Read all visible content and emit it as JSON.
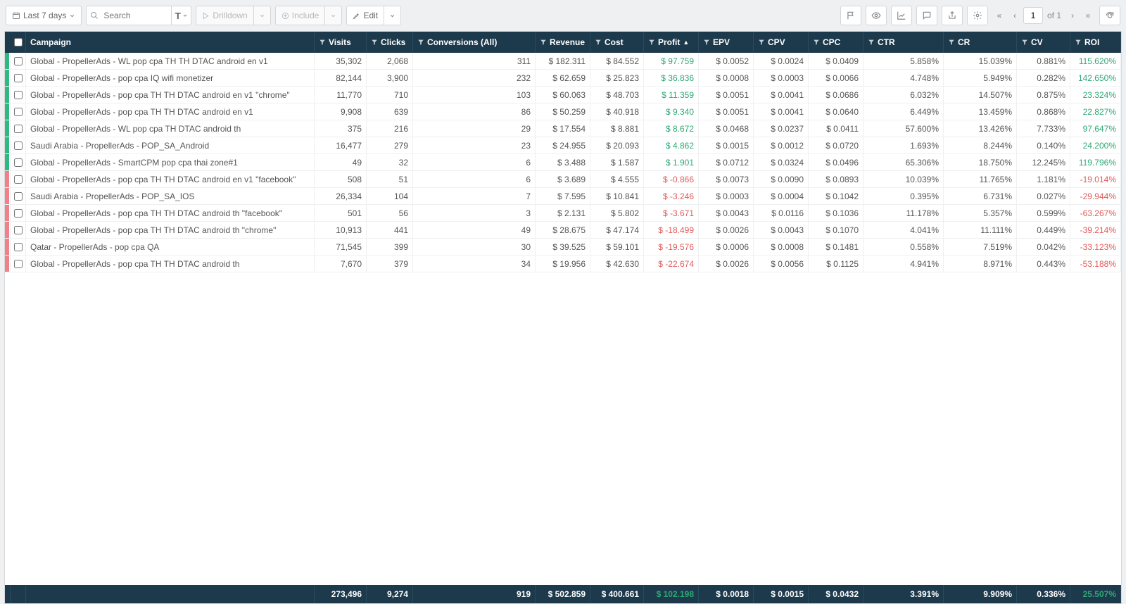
{
  "colors": {
    "header_bg": "#1d3a4c",
    "positive": "#2fa875",
    "negative": "#e05a5a",
    "status_green": "#2fb980",
    "status_red": "#f0808a",
    "border": "#d5d5d5"
  },
  "toolbar": {
    "date_range_label": "Last 7 days",
    "search_placeholder": "Search",
    "search_type_label": "T",
    "drilldown_label": "Drilldown",
    "include_label": "Include",
    "edit_label": "Edit",
    "page_current": "1",
    "page_total_label": "of 1"
  },
  "columns": [
    {
      "key": "campaign",
      "label": "Campaign",
      "align": "left",
      "filter": false
    },
    {
      "key": "visits",
      "label": "Visits",
      "align": "right",
      "filter": true
    },
    {
      "key": "clicks",
      "label": "Clicks",
      "align": "right",
      "filter": true
    },
    {
      "key": "conv",
      "label": "Conversions (All)",
      "align": "right",
      "filter": true
    },
    {
      "key": "revenue",
      "label": "Revenue",
      "align": "right",
      "filter": true
    },
    {
      "key": "cost",
      "label": "Cost",
      "align": "right",
      "filter": true
    },
    {
      "key": "profit",
      "label": "Profit",
      "align": "right",
      "filter": true,
      "sorted": "asc"
    },
    {
      "key": "epv",
      "label": "EPV",
      "align": "right",
      "filter": true
    },
    {
      "key": "cpv",
      "label": "CPV",
      "align": "right",
      "filter": true
    },
    {
      "key": "cpc",
      "label": "CPC",
      "align": "right",
      "filter": true
    },
    {
      "key": "ctr",
      "label": "CTR",
      "align": "right",
      "filter": true
    },
    {
      "key": "cr",
      "label": "CR",
      "align": "right",
      "filter": true
    },
    {
      "key": "cv",
      "label": "CV",
      "align": "right",
      "filter": true
    },
    {
      "key": "roi",
      "label": "ROI",
      "align": "right",
      "filter": true
    }
  ],
  "rows": [
    {
      "status": "pos",
      "campaign": "Global - PropellerAds - WL pop cpa TH TH DTAC android en v1",
      "visits": "35,302",
      "clicks": "2,068",
      "conv": "311",
      "revenue": "$ 182.311",
      "cost": "$ 84.552",
      "profit": "$ 97.759",
      "profit_sign": 1,
      "epv": "$ 0.0052",
      "cpv": "$ 0.0024",
      "cpc": "$ 0.0409",
      "ctr": "5.858%",
      "cr": "15.039%",
      "cv": "0.881%",
      "roi": "115.620%",
      "roi_sign": 1
    },
    {
      "status": "pos",
      "campaign": "Global - PropellerAds - pop cpa IQ wifi monetizer",
      "visits": "82,144",
      "clicks": "3,900",
      "conv": "232",
      "revenue": "$ 62.659",
      "cost": "$ 25.823",
      "profit": "$ 36.836",
      "profit_sign": 1,
      "epv": "$ 0.0008",
      "cpv": "$ 0.0003",
      "cpc": "$ 0.0066",
      "ctr": "4.748%",
      "cr": "5.949%",
      "cv": "0.282%",
      "roi": "142.650%",
      "roi_sign": 1
    },
    {
      "status": "pos",
      "campaign": "Global - PropellerAds - pop cpa TH TH DTAC android en v1 \"chrome\"",
      "visits": "11,770",
      "clicks": "710",
      "conv": "103",
      "revenue": "$ 60.063",
      "cost": "$ 48.703",
      "profit": "$ 11.359",
      "profit_sign": 1,
      "epv": "$ 0.0051",
      "cpv": "$ 0.0041",
      "cpc": "$ 0.0686",
      "ctr": "6.032%",
      "cr": "14.507%",
      "cv": "0.875%",
      "roi": "23.324%",
      "roi_sign": 1
    },
    {
      "status": "pos",
      "campaign": "Global - PropellerAds - pop cpa TH TH DTAC android en v1",
      "visits": "9,908",
      "clicks": "639",
      "conv": "86",
      "revenue": "$ 50.259",
      "cost": "$ 40.918",
      "profit": "$ 9.340",
      "profit_sign": 1,
      "epv": "$ 0.0051",
      "cpv": "$ 0.0041",
      "cpc": "$ 0.0640",
      "ctr": "6.449%",
      "cr": "13.459%",
      "cv": "0.868%",
      "roi": "22.827%",
      "roi_sign": 1
    },
    {
      "status": "pos",
      "campaign": "Global - PropellerAds - WL pop cpa TH DTAC android th",
      "visits": "375",
      "clicks": "216",
      "conv": "29",
      "revenue": "$ 17.554",
      "cost": "$ 8.881",
      "profit": "$ 8.672",
      "profit_sign": 1,
      "epv": "$ 0.0468",
      "cpv": "$ 0.0237",
      "cpc": "$ 0.0411",
      "ctr": "57.600%",
      "cr": "13.426%",
      "cv": "7.733%",
      "roi": "97.647%",
      "roi_sign": 1
    },
    {
      "status": "pos",
      "campaign": "Saudi Arabia - PropellerAds - POP_SA_Android",
      "visits": "16,477",
      "clicks": "279",
      "conv": "23",
      "revenue": "$ 24.955",
      "cost": "$ 20.093",
      "profit": "$ 4.862",
      "profit_sign": 1,
      "epv": "$ 0.0015",
      "cpv": "$ 0.0012",
      "cpc": "$ 0.0720",
      "ctr": "1.693%",
      "cr": "8.244%",
      "cv": "0.140%",
      "roi": "24.200%",
      "roi_sign": 1
    },
    {
      "status": "pos",
      "campaign": "Global - PropellerAds - SmartCPM pop cpa thai zone#1",
      "visits": "49",
      "clicks": "32",
      "conv": "6",
      "revenue": "$ 3.488",
      "cost": "$ 1.587",
      "profit": "$ 1.901",
      "profit_sign": 1,
      "epv": "$ 0.0712",
      "cpv": "$ 0.0324",
      "cpc": "$ 0.0496",
      "ctr": "65.306%",
      "cr": "18.750%",
      "cv": "12.245%",
      "roi": "119.796%",
      "roi_sign": 1
    },
    {
      "status": "neg",
      "campaign": "Global - PropellerAds - pop cpa TH TH DTAC android en v1 \"facebook\"",
      "visits": "508",
      "clicks": "51",
      "conv": "6",
      "revenue": "$ 3.689",
      "cost": "$ 4.555",
      "profit": "$ -0.866",
      "profit_sign": -1,
      "epv": "$ 0.0073",
      "cpv": "$ 0.0090",
      "cpc": "$ 0.0893",
      "ctr": "10.039%",
      "cr": "11.765%",
      "cv": "1.181%",
      "roi": "-19.014%",
      "roi_sign": -1
    },
    {
      "status": "neg",
      "campaign": "Saudi Arabia - PropellerAds - POP_SA_IOS",
      "visits": "26,334",
      "clicks": "104",
      "conv": "7",
      "revenue": "$ 7.595",
      "cost": "$ 10.841",
      "profit": "$ -3.246",
      "profit_sign": -1,
      "epv": "$ 0.0003",
      "cpv": "$ 0.0004",
      "cpc": "$ 0.1042",
      "ctr": "0.395%",
      "cr": "6.731%",
      "cv": "0.027%",
      "roi": "-29.944%",
      "roi_sign": -1
    },
    {
      "status": "neg",
      "campaign": "Global - PropellerAds - pop cpa TH TH DTAC android th \"facebook\"",
      "visits": "501",
      "clicks": "56",
      "conv": "3",
      "revenue": "$ 2.131",
      "cost": "$ 5.802",
      "profit": "$ -3.671",
      "profit_sign": -1,
      "epv": "$ 0.0043",
      "cpv": "$ 0.0116",
      "cpc": "$ 0.1036",
      "ctr": "11.178%",
      "cr": "5.357%",
      "cv": "0.599%",
      "roi": "-63.267%",
      "roi_sign": -1
    },
    {
      "status": "neg",
      "campaign": "Global - PropellerAds - pop cpa TH TH DTAC android th \"chrome\"",
      "visits": "10,913",
      "clicks": "441",
      "conv": "49",
      "revenue": "$ 28.675",
      "cost": "$ 47.174",
      "profit": "$ -18.499",
      "profit_sign": -1,
      "epv": "$ 0.0026",
      "cpv": "$ 0.0043",
      "cpc": "$ 0.1070",
      "ctr": "4.041%",
      "cr": "11.111%",
      "cv": "0.449%",
      "roi": "-39.214%",
      "roi_sign": -1
    },
    {
      "status": "neg",
      "campaign": "Qatar - PropellerAds - pop cpa QA",
      "visits": "71,545",
      "clicks": "399",
      "conv": "30",
      "revenue": "$ 39.525",
      "cost": "$ 59.101",
      "profit": "$ -19.576",
      "profit_sign": -1,
      "epv": "$ 0.0006",
      "cpv": "$ 0.0008",
      "cpc": "$ 0.1481",
      "ctr": "0.558%",
      "cr": "7.519%",
      "cv": "0.042%",
      "roi": "-33.123%",
      "roi_sign": -1
    },
    {
      "status": "neg",
      "campaign": "Global - PropellerAds - pop cpa TH TH DTAC android th",
      "visits": "7,670",
      "clicks": "379",
      "conv": "34",
      "revenue": "$ 19.956",
      "cost": "$ 42.630",
      "profit": "$ -22.674",
      "profit_sign": -1,
      "epv": "$ 0.0026",
      "cpv": "$ 0.0056",
      "cpc": "$ 0.1125",
      "ctr": "4.941%",
      "cr": "8.971%",
      "cv": "0.443%",
      "roi": "-53.188%",
      "roi_sign": -1
    }
  ],
  "totals": {
    "visits": "273,496",
    "clicks": "9,274",
    "conv": "919",
    "revenue": "$ 502.859",
    "cost": "$ 400.661",
    "profit": "$ 102.198",
    "profit_sign": 1,
    "epv": "$ 0.0018",
    "cpv": "$ 0.0015",
    "cpc": "$ 0.0432",
    "ctr": "3.391%",
    "cr": "9.909%",
    "cv": "0.336%",
    "roi": "25.507%",
    "roi_sign": 1
  }
}
